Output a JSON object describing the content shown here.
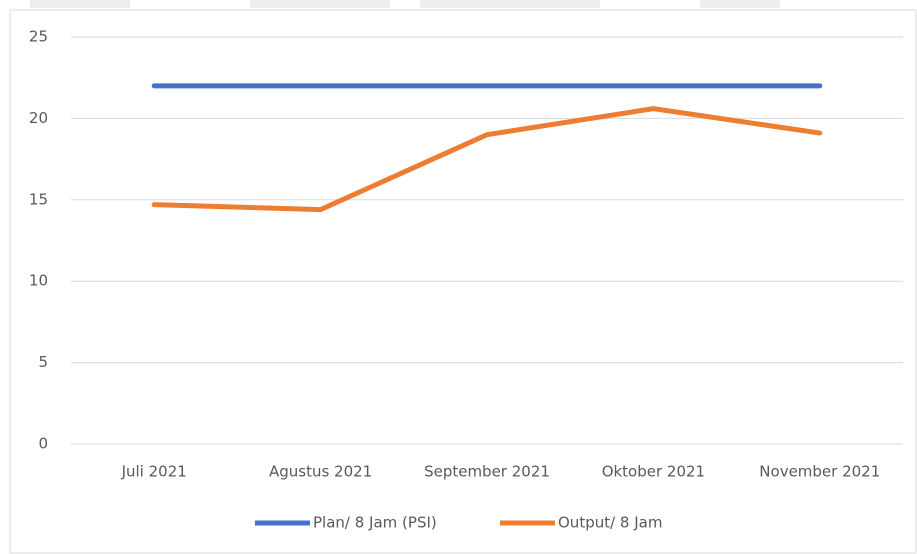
{
  "chart_data": {
    "type": "line",
    "categories": [
      "Juli 2021",
      "Agustus 2021",
      "September 2021",
      "Oktober 2021",
      "November 2021"
    ],
    "series": [
      {
        "name": "Plan/ 8 Jam (PSI)",
        "color": "#4472c4",
        "values": [
          22,
          22,
          22,
          22,
          22
        ]
      },
      {
        "name": "Output/ 8 Jam",
        "color": "#ed7d31",
        "values": [
          14.7,
          14.4,
          19,
          20.6,
          19.1
        ]
      }
    ],
    "ylim": [
      0,
      25
    ],
    "yticks": [
      0,
      5,
      10,
      15,
      20,
      25
    ],
    "grid": true,
    "legend": "bottom"
  }
}
